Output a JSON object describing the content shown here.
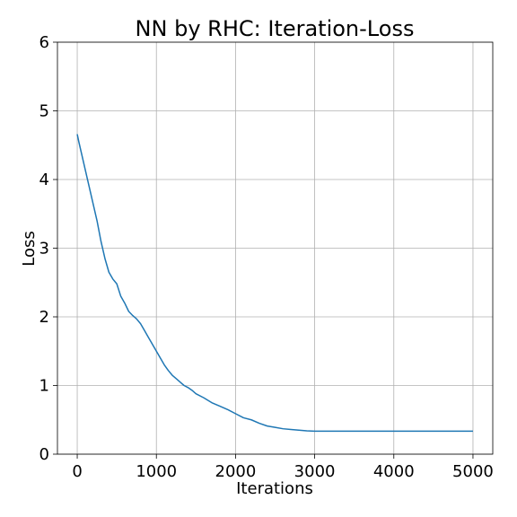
{
  "chart_data": {
    "type": "line",
    "title": "NN by RHC: Iteration-Loss",
    "xlabel": "Iterations",
    "ylabel": "Loss",
    "xlim": [
      -250,
      5250
    ],
    "ylim": [
      0,
      6
    ],
    "xticks": [
      0,
      1000,
      2000,
      3000,
      4000,
      5000
    ],
    "xtick_labels": [
      "0",
      "1000",
      "2000",
      "3000",
      "4000",
      "5000"
    ],
    "yticks": [
      0,
      1,
      2,
      3,
      4,
      5,
      6
    ],
    "ytick_labels": [
      "0",
      "1",
      "2",
      "3",
      "4",
      "5",
      "6"
    ],
    "grid": true,
    "series": [
      {
        "color": "#1f77b4",
        "x": [
          0,
          20,
          50,
          100,
          150,
          200,
          250,
          300,
          350,
          400,
          450,
          500,
          550,
          600,
          650,
          700,
          750,
          800,
          850,
          900,
          950,
          1000,
          1050,
          1100,
          1150,
          1200,
          1250,
          1300,
          1350,
          1400,
          1450,
          1500,
          1600,
          1700,
          1800,
          1900,
          2000,
          2100,
          2200,
          2300,
          2400,
          2500,
          2600,
          2700,
          2800,
          2900,
          3000,
          3500,
          4000,
          4500,
          5000
        ],
        "y": [
          4.66,
          4.55,
          4.4,
          4.15,
          3.9,
          3.65,
          3.4,
          3.1,
          2.85,
          2.65,
          2.55,
          2.48,
          2.3,
          2.2,
          2.08,
          2.02,
          1.97,
          1.9,
          1.8,
          1.7,
          1.6,
          1.5,
          1.4,
          1.3,
          1.22,
          1.15,
          1.1,
          1.05,
          1.0,
          0.97,
          0.93,
          0.88,
          0.82,
          0.75,
          0.7,
          0.65,
          0.59,
          0.53,
          0.5,
          0.45,
          0.41,
          0.39,
          0.37,
          0.36,
          0.35,
          0.34,
          0.335,
          0.335,
          0.335,
          0.335,
          0.335
        ]
      }
    ]
  }
}
